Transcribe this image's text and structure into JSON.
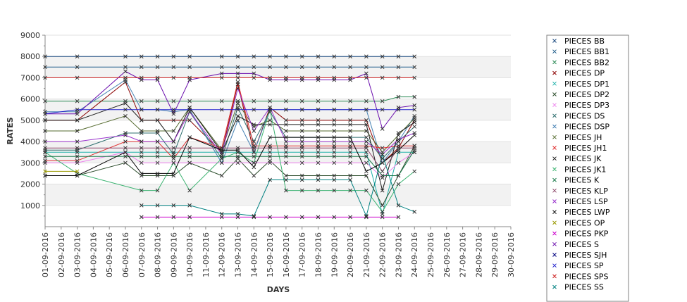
{
  "chart_data": {
    "type": "line",
    "xlabel": "DAYS",
    "ylabel": "RATES",
    "ylim": [
      0,
      9000
    ],
    "yticks": [
      1000,
      2000,
      3000,
      4000,
      5000,
      6000,
      7000,
      8000,
      9000
    ],
    "categories": [
      "01-09-2016",
      "02-09-2016",
      "03-09-2016",
      "04-09-2016",
      "05-09-2016",
      "06-09-2016",
      "07-09-2016",
      "08-09-2016",
      "09-09-2016",
      "10-09-2016",
      "11-09-2016",
      "12-09-2016",
      "13-09-2016",
      "14-09-2016",
      "15-09-2016",
      "16-09-2016",
      "17-09-2016",
      "18-09-2016",
      "19-09-2016",
      "20-09-2016",
      "21-09-2016",
      "22-09-2016",
      "23-09-2016",
      "24-09-2016",
      "25-09-2016",
      "26-09-2016",
      "27-09-2016",
      "28-09-2016",
      "29-09-2016",
      "30-09-2016"
    ],
    "grid": "horizontal alternating bands",
    "legend_position": "right",
    "series": [
      {
        "name": "PIECES BB",
        "color": "#1a4a80",
        "values": [
          8000,
          null,
          8000,
          null,
          null,
          8000,
          8000,
          8000,
          8000,
          8000,
          null,
          8000,
          8000,
          8000,
          8000,
          8000,
          8000,
          8000,
          8000,
          8000,
          8000,
          8000,
          8000,
          8000,
          null,
          null,
          null,
          null,
          null,
          null
        ]
      },
      {
        "name": "PIECES BB1",
        "color": "#1f5d8a",
        "values": [
          7500,
          null,
          7500,
          null,
          null,
          7500,
          7500,
          7500,
          7500,
          7500,
          null,
          7500,
          7500,
          7500,
          7500,
          7500,
          7500,
          7500,
          7500,
          7500,
          7500,
          7500,
          7500,
          7500,
          null,
          null,
          null,
          null,
          null,
          null
        ]
      },
      {
        "name": "PIECES BB2",
        "color": "#2e8b57",
        "values": [
          5900,
          null,
          5900,
          null,
          null,
          5900,
          5900,
          5900,
          5900,
          5900,
          null,
          5900,
          5900,
          5900,
          5900,
          5900,
          5900,
          5900,
          5900,
          5900,
          5900,
          5900,
          6100,
          6100,
          null,
          null,
          null,
          null,
          null,
          null
        ]
      },
      {
        "name": "PIECES DP",
        "color": "#8b0000",
        "values": [
          5000,
          null,
          5000,
          null,
          null,
          6800,
          5000,
          5000,
          5000,
          5000,
          null,
          3500,
          6700,
          3500,
          5600,
          5000,
          5000,
          5000,
          5000,
          5000,
          5000,
          3000,
          3700,
          5000,
          null,
          null,
          null,
          null,
          null,
          null
        ]
      },
      {
        "name": "PIECES DP1",
        "color": "#20b2aa",
        "values": [
          3500,
          null,
          3500,
          null,
          null,
          3500,
          3500,
          3500,
          3500,
          3500,
          null,
          3500,
          3500,
          3500,
          3500,
          3500,
          3500,
          3500,
          3500,
          3500,
          3500,
          600,
          3500,
          3500,
          null,
          null,
          null,
          null,
          null,
          null
        ]
      },
      {
        "name": "PIECES DP2",
        "color": "#2f4f2f",
        "values": [
          2400,
          null,
          2400,
          null,
          null,
          3000,
          2400,
          2400,
          2400,
          3000,
          null,
          2400,
          3200,
          2400,
          3100,
          2400,
          2400,
          2400,
          2400,
          2400,
          2400,
          1000,
          2400,
          3800,
          null,
          null,
          null,
          null,
          null,
          null
        ]
      },
      {
        "name": "PIECES DP3",
        "color": "#ee82ee",
        "values": [
          3000,
          null,
          3000,
          null,
          null,
          3500,
          3000,
          3000,
          3000,
          3000,
          null,
          3000,
          3000,
          3000,
          3000,
          3000,
          3000,
          3000,
          3000,
          3000,
          3000,
          2300,
          3000,
          3500,
          null,
          null,
          null,
          null,
          null,
          null
        ]
      },
      {
        "name": "PIECES DS",
        "color": "#2f6f6f",
        "values": [
          3600,
          null,
          3600,
          null,
          null,
          4400,
          4400,
          4400,
          3400,
          5400,
          null,
          3200,
          5600,
          4000,
          5400,
          4200,
          4200,
          4200,
          4200,
          4200,
          4200,
          3200,
          4000,
          4700,
          null,
          null,
          null,
          null,
          null,
          null
        ]
      },
      {
        "name": "PIECES DSP",
        "color": "#4682b4",
        "values": [
          5400,
          null,
          5400,
          null,
          null,
          6900,
          5500,
          5500,
          5400,
          5500,
          null,
          3000,
          5000,
          3500,
          5500,
          5500,
          5500,
          5500,
          5500,
          5500,
          5500,
          3000,
          4000,
          5200,
          null,
          null,
          null,
          null,
          null,
          null
        ]
      },
      {
        "name": "PIECES JH",
        "color": "#556b2f",
        "values": [
          4500,
          null,
          4500,
          null,
          null,
          5200,
          4500,
          4500,
          4500,
          5600,
          null,
          3600,
          5800,
          4700,
          5000,
          4500,
          4500,
          4500,
          4500,
          4500,
          4500,
          3500,
          4300,
          5100,
          null,
          null,
          null,
          null,
          null,
          null
        ]
      },
      {
        "name": "PIECES JH1",
        "color": "#e03030",
        "values": [
          3100,
          null,
          3100,
          null,
          null,
          4000,
          4000,
          4000,
          3200,
          4200,
          null,
          3700,
          6800,
          3800,
          3800,
          3800,
          3800,
          3800,
          3800,
          3800,
          3800,
          3700,
          3800,
          3800,
          null,
          null,
          null,
          null,
          null,
          null
        ]
      },
      {
        "name": "PIECES JK",
        "color": "#1c1c1c",
        "values": [
          5000,
          null,
          5000,
          null,
          null,
          5800,
          5000,
          5000,
          4000,
          5600,
          null,
          3500,
          5200,
          4800,
          4800,
          4800,
          4800,
          4800,
          4800,
          4800,
          4800,
          1700,
          4400,
          4900,
          null,
          null,
          null,
          null,
          null,
          null
        ]
      },
      {
        "name": "PIECES JK1",
        "color": "#3cb371",
        "values": [
          3500,
          null,
          2500,
          null,
          null,
          null,
          1700,
          1700,
          3000,
          1700,
          null,
          3200,
          3500,
          3000,
          5500,
          1700,
          1700,
          1700,
          1700,
          1700,
          1700,
          700,
          2000,
          2600,
          null,
          null,
          null,
          null,
          null,
          null
        ]
      },
      {
        "name": "PIECES K",
        "color": "#1a7a4a",
        "values": [
          3300,
          null,
          3300,
          null,
          null,
          3300,
          3300,
          3300,
          3300,
          3300,
          null,
          3300,
          3300,
          3300,
          3300,
          3300,
          3300,
          3300,
          3300,
          3300,
          3300,
          2400,
          2400,
          3600,
          null,
          null,
          null,
          null,
          null,
          null
        ]
      },
      {
        "name": "PIECES KLP",
        "color": "#8b4567",
        "values": [
          3700,
          null,
          3700,
          null,
          null,
          3700,
          3700,
          3700,
          3700,
          3700,
          null,
          3700,
          3700,
          3700,
          3700,
          3700,
          3700,
          3700,
          3700,
          3700,
          3700,
          2600,
          3700,
          3700,
          null,
          null,
          null,
          null,
          null,
          null
        ]
      },
      {
        "name": "PIECES LSP",
        "color": "#9932cc",
        "values": [
          4000,
          null,
          4000,
          null,
          null,
          4300,
          4000,
          4000,
          4000,
          5400,
          null,
          3400,
          6500,
          4500,
          5600,
          4000,
          4000,
          4000,
          4000,
          4000,
          4000,
          3400,
          4100,
          4400,
          null,
          null,
          null,
          null,
          null,
          null
        ]
      },
      {
        "name": "PIECES LWP",
        "color": "#000000",
        "values": [
          2400,
          null,
          2400,
          null,
          null,
          3500,
          2500,
          2500,
          2500,
          4200,
          null,
          3600,
          3600,
          2800,
          4200,
          4200,
          4200,
          4200,
          4200,
          4200,
          2600,
          3000,
          3600,
          4300,
          null,
          null,
          null,
          null,
          null,
          null
        ]
      },
      {
        "name": "PIECES OP",
        "color": "#999900",
        "values": [
          2600,
          null,
          2600,
          null,
          null,
          null,
          null,
          null,
          null,
          null,
          null,
          null,
          null,
          null,
          null,
          null,
          null,
          null,
          null,
          null,
          null,
          null,
          null,
          null,
          null,
          null,
          null,
          null,
          null,
          null
        ]
      },
      {
        "name": "PIECES PKP",
        "color": "#cc00cc",
        "values": [
          null,
          null,
          null,
          null,
          null,
          null,
          450,
          450,
          450,
          450,
          null,
          450,
          450,
          450,
          450,
          450,
          450,
          450,
          450,
          450,
          450,
          450,
          450,
          null,
          null,
          null,
          null,
          null,
          null,
          null
        ]
      },
      {
        "name": "PIECES S",
        "color": "#6a0dad",
        "values": [
          5300,
          null,
          5300,
          null,
          null,
          7300,
          6900,
          6900,
          5300,
          6900,
          null,
          7200,
          7200,
          7200,
          6900,
          6900,
          6900,
          6900,
          6900,
          6900,
          7200,
          4600,
          5600,
          5700,
          null,
          null,
          null,
          null,
          null,
          null
        ]
      },
      {
        "name": "PIECES SJH",
        "color": "#000080",
        "values": [
          null,
          null,
          null,
          null,
          null,
          null,
          null,
          null,
          null,
          null,
          null,
          null,
          null,
          null,
          null,
          null,
          null,
          null,
          null,
          null,
          null,
          null,
          null,
          null,
          null,
          null,
          null,
          null,
          null,
          null
        ]
      },
      {
        "name": "PIECES SP",
        "color": "#2020cc",
        "values": [
          5300,
          null,
          5500,
          null,
          null,
          5500,
          5500,
          5500,
          5500,
          5500,
          null,
          5500,
          5500,
          5500,
          5500,
          5500,
          5500,
          5500,
          5500,
          5500,
          5500,
          5500,
          5500,
          5500,
          null,
          null,
          null,
          null,
          null,
          null
        ]
      },
      {
        "name": "PIECES SPS",
        "color": "#cc2020",
        "values": [
          7000,
          null,
          7000,
          null,
          null,
          7000,
          7000,
          7000,
          7000,
          7000,
          null,
          7000,
          7000,
          7000,
          7000,
          7000,
          7000,
          7000,
          7000,
          7000,
          7000,
          7000,
          7000,
          7000,
          null,
          null,
          null,
          null,
          null,
          null
        ]
      },
      {
        "name": "PIECES SS",
        "color": "#008080",
        "values": [
          null,
          null,
          null,
          null,
          null,
          null,
          1000,
          1000,
          1000,
          1000,
          null,
          600,
          600,
          500,
          2200,
          2200,
          2200,
          2200,
          2200,
          2200,
          500,
          3400,
          1000,
          700,
          null,
          null,
          null,
          null,
          null,
          null
        ]
      }
    ]
  }
}
